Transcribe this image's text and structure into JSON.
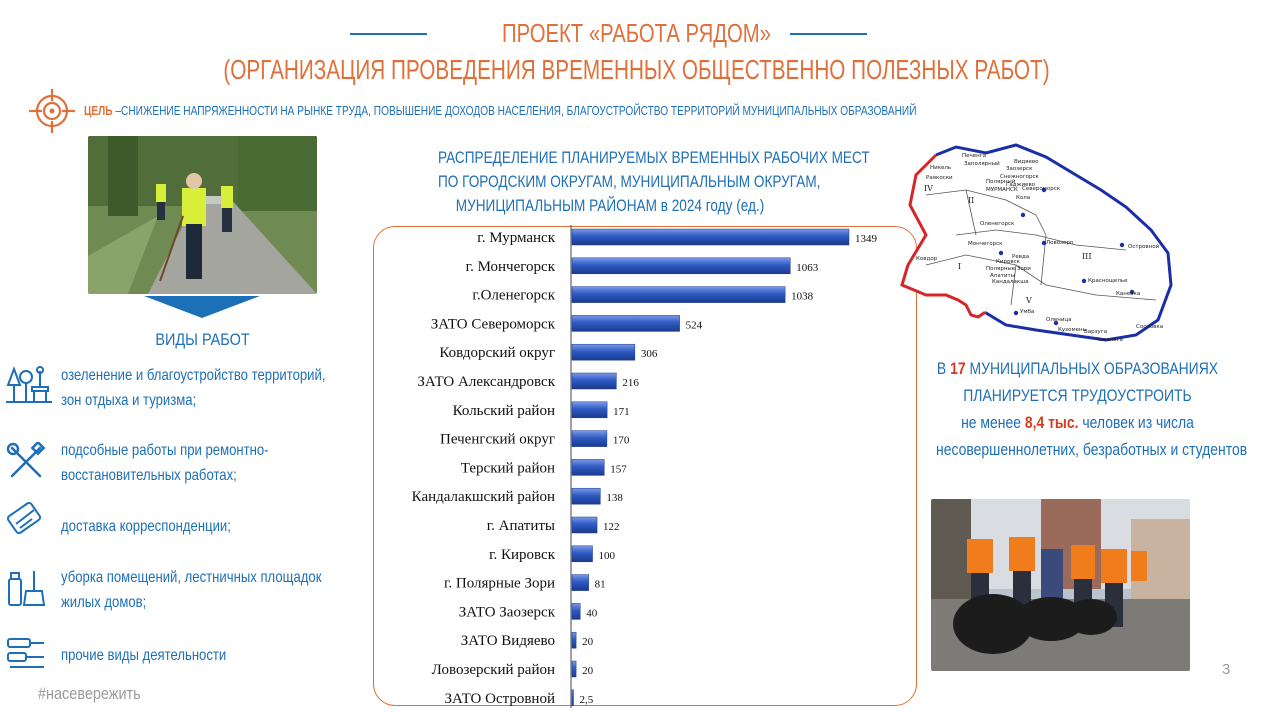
{
  "header": {
    "title_line1": "ПРОЕКТ «РАБОТА РЯДОМ»",
    "title_line2": "(ОРГАНИЗАЦИЯ ПРОВЕДЕНИЯ ВРЕМЕННЫХ ОБЩЕСТВЕННО ПОЛЕЗНЫХ РАБОТ)",
    "goal_label": "ЦЕЛЬ",
    "goal_text": " –СНИЖЕНИЕ НАПРЯЖЕННОСТИ НА РЫНКЕ ТРУДА, ПОВЫШЕНИЕ ДОХОДОВ НАСЕЛЕНИЯ,  БЛАГОУСТРОЙСТВО ТЕРРИТОРИЙ МУНИЦИПАЛЬНЫХ ОБРАЗОВАНИЙ",
    "accent_color": "#e0703a",
    "primary_color": "#1d6fb8"
  },
  "work_types": {
    "title": "ВИДЫ РАБОТ",
    "items": [
      {
        "icon": "tree-bench-icon",
        "line1": "озеленение и благоустройство территорий,",
        "line2": "зон отдыха и туризма;"
      },
      {
        "icon": "wrench-screwdriver-icon",
        "line1": "подсобные работы при ремонтно-",
        "line2": "восстановительных работах;"
      },
      {
        "icon": "envelope-card-icon",
        "line1": "доставка корреспонденции;",
        "line2": ""
      },
      {
        "icon": "cleaning-supplies-icon",
        "line1": "уборка помещений, лестничных площадок",
        "line2": "жилых домов;"
      },
      {
        "icon": "tools-icon",
        "line1": "прочие виды деятельности",
        "line2": ""
      }
    ]
  },
  "footer": {
    "hashtag": "#насевережить",
    "page_number": "3"
  },
  "info": {
    "line1_prefix": "В ",
    "line1_number": "17",
    "line1_suffix": " МУНИЦИПАЛЬНЫХ ОБРАЗОВАНИЯХ",
    "line2": "ПЛАНИРУЕТСЯ  ТРУДОУСТРОИТЬ",
    "line3_prefix": "не менее ",
    "line3_number": "8,4 тыс.",
    "line3_suffix": " человек из числа",
    "line4": "несовершеннолетних, безработных и студентов"
  },
  "map": {
    "place_labels": [
      "Печенга",
      "Заполярный",
      "Никель",
      "Заозерск",
      "Снежногорск",
      "Гаджиево",
      "Полярный",
      "Раякоски",
      "Видяево",
      "МУРМАНСК",
      "Североморск",
      "Кола",
      "Оленегорск",
      "Ловозеро",
      "Мончегорск",
      "Ревда",
      "Ковдор",
      "Кировск",
      "Апатиты",
      "Полярные Зори",
      "Кандалакша",
      "Островной",
      "Краснощелье",
      "Каневка",
      "Умба",
      "Оленица",
      "Кузомень",
      "Варзуга",
      "Чаваньга",
      "Сосновка"
    ],
    "roman_numerals": [
      "IV",
      "II",
      "III",
      "I",
      "V"
    ]
  },
  "chart_data": {
    "type": "bar",
    "orientation": "horizontal",
    "title": [
      "РАСПРЕДЕЛЕНИЕ  ПЛАНИРУЕМЫХ ВРЕМЕННЫХ РАБОЧИХ МЕСТ",
      "ПО ГОРОДСКИМ ОКРУГАМ, МУНИЦИПАЛЬНЫМ ОКРУГАМ,",
      "МУНИЦИПАЛЬНЫМ РАЙОНАМ в 2024 году (ед.)"
    ],
    "categories": [
      "г. Мурманск",
      "г. Мончегорск",
      "г.Оленегорск",
      "ЗАТО Североморск",
      "Ковдорский округ",
      "ЗАТО Александровск",
      "Кольский район",
      "Печенгский округ",
      "Терский район",
      "Кандалакшский район",
      "г. Апатиты",
      "г. Кировск",
      "г. Полярные Зори",
      "ЗАТО Заозерск",
      "ЗАТО Видяево",
      "Ловозерский район",
      "ЗАТО Островной"
    ],
    "values": [
      1349,
      1063,
      1038,
      524,
      306,
      216,
      171,
      170,
      157,
      138,
      122,
      100,
      81,
      40,
      20,
      20,
      2.5
    ],
    "value_labels": [
      "1349",
      "1063",
      "1038",
      "524",
      "306",
      "216",
      "171",
      "170",
      "157",
      "138",
      "122",
      "100",
      "81",
      "40",
      "20",
      "20",
      "2,5"
    ],
    "xlim": [
      0,
      1349
    ],
    "grid": false,
    "bar_color": "#2f5bc4"
  }
}
